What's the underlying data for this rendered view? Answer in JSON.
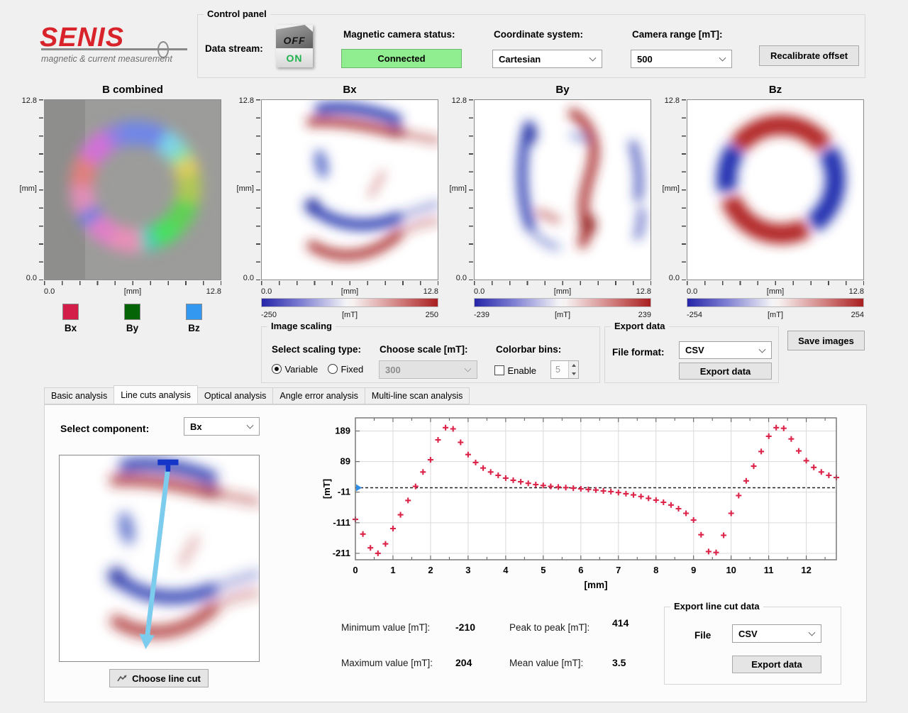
{
  "logo": {
    "name": "SENIS",
    "tagline": "magnetic & current measurement",
    "accent_color": "#d8232a"
  },
  "control_panel": {
    "title": "Control panel",
    "data_stream_label": "Data stream:",
    "toggle": {
      "off": "OFF",
      "on": "ON",
      "state": "ON"
    },
    "camera_status_label": "Magnetic camera status:",
    "camera_status_value": "Connected",
    "camera_status_color": "#90ee90",
    "coordinate_label": "Coordinate system:",
    "coordinate_value": "Cartesian",
    "range_label": "Camera range [mT]:",
    "range_value": "500",
    "recalibrate_button": "Recalibrate offset"
  },
  "maps": {
    "axis": {
      "y_max": "12.8",
      "y_unit": "[mm]",
      "y_min": "0.0",
      "x_min": "0.0",
      "x_unit": "[mm]",
      "x_max": "12.8"
    },
    "b_combined": {
      "title": "B combined"
    },
    "bx": {
      "title": "Bx",
      "cbar_min": "-250",
      "cbar_unit": "[mT]",
      "cbar_max": "250"
    },
    "by": {
      "title": "By",
      "cbar_min": "-239",
      "cbar_unit": "[mT]",
      "cbar_max": "239"
    },
    "bz": {
      "title": "Bz",
      "cbar_min": "-254",
      "cbar_unit": "[mT]",
      "cbar_max": "254"
    }
  },
  "legend": [
    {
      "label": "Bx",
      "color": "#d41e4a"
    },
    {
      "label": "By",
      "color": "#056405"
    },
    {
      "label": "Bz",
      "color": "#3399f0"
    }
  ],
  "image_scaling": {
    "title": "Image scaling",
    "scaling_type_label": "Select scaling type:",
    "radio_variable": "Variable",
    "radio_fixed": "Fixed",
    "selected_radio": "Variable",
    "scale_label": "Choose scale [mT]:",
    "scale_value": "300",
    "colorbar_bins_label": "Colorbar bins:",
    "enable_label": "Enable",
    "enable_checked": false,
    "bins_value": "5"
  },
  "export_data": {
    "title": "Export data",
    "file_format_label": "File format:",
    "file_format_value": "CSV",
    "export_button": "Export data"
  },
  "save_images_button": "Save images",
  "tabs": [
    {
      "label": "Basic analysis"
    },
    {
      "label": "Line cuts analysis",
      "active": true
    },
    {
      "label": "Optical analysis"
    },
    {
      "label": "Angle error analysis"
    },
    {
      "label": "Multi-line scan analysis"
    }
  ],
  "line_cuts": {
    "select_component_label": "Select component:",
    "component_value": "Bx",
    "choose_line_cut_button": "Choose line cut",
    "stats": [
      {
        "label": "Minimum value [mT]:",
        "value": "-210"
      },
      {
        "label": "Peak to peak [mT]:",
        "value": "414"
      },
      {
        "label": "Maximum value [mT]:",
        "value": "204"
      },
      {
        "label": "Mean value [mT]:",
        "value": "3.5"
      }
    ],
    "export": {
      "title": "Export line cut data",
      "file_label": "File",
      "file_value": "CSV",
      "export_button": "Export data"
    }
  },
  "chart_data": {
    "type": "scatter",
    "marker": "+",
    "marker_color": "#dc2348",
    "xlabel": "[mm]",
    "ylabel": "[mT]",
    "xlim": [
      0,
      12.8
    ],
    "ylim": [
      -232,
      232
    ],
    "xticks": [
      0,
      1,
      2,
      3,
      4,
      5,
      6,
      7,
      8,
      9,
      10,
      11,
      12
    ],
    "yticks": [
      189,
      89,
      -11,
      -111,
      -211
    ],
    "grid": true,
    "mean_line": 3.5,
    "start_marker_color": "#2f8fe8",
    "x": [
      0.0,
      0.2,
      0.4,
      0.6,
      0.8,
      1.0,
      1.2,
      1.4,
      1.6,
      1.8,
      2.0,
      2.2,
      2.4,
      2.6,
      2.8,
      3.0,
      3.2,
      3.4,
      3.6,
      3.8,
      4.0,
      4.2,
      4.4,
      4.6,
      4.8,
      5.0,
      5.2,
      5.4,
      5.6,
      5.8,
      6.0,
      6.2,
      6.4,
      6.6,
      6.8,
      7.0,
      7.2,
      7.4,
      7.6,
      7.8,
      8.0,
      8.2,
      8.4,
      8.6,
      8.8,
      9.0,
      9.2,
      9.4,
      9.6,
      9.8,
      10.0,
      10.2,
      10.4,
      10.6,
      10.8,
      11.0,
      11.2,
      11.4,
      11.6,
      11.8,
      12.0,
      12.2,
      12.4,
      12.6,
      12.8
    ],
    "y": [
      -100,
      -148,
      -193,
      -211,
      -180,
      -130,
      -85,
      -38,
      8,
      55,
      95,
      160,
      200,
      196,
      152,
      112,
      86,
      68,
      55,
      44,
      35,
      28,
      23,
      18,
      14,
      11,
      8,
      6,
      4,
      2,
      0,
      -2,
      -4,
      -7,
      -9,
      -12,
      -16,
      -20,
      -25,
      -31,
      -37,
      -44,
      -53,
      -65,
      -80,
      -102,
      -150,
      -205,
      -208,
      -152,
      -80,
      -22,
      26,
      74,
      122,
      172,
      200,
      198,
      163,
      124,
      92,
      70,
      55,
      44,
      37
    ]
  }
}
